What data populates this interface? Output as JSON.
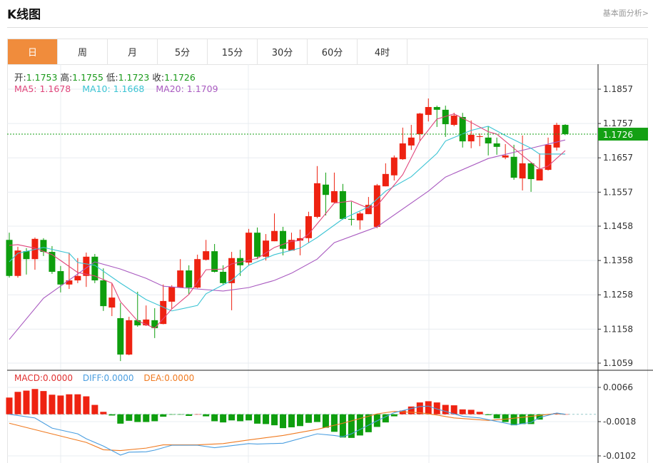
{
  "header": {
    "title": "K线图",
    "link": "基本面分析>"
  },
  "tabs": [
    "日",
    "周",
    "月",
    "5分",
    "15分",
    "30分",
    "60分",
    "4时"
  ],
  "active_tab": 0,
  "ohlc": {
    "open_label": "开:",
    "open": "1.1753",
    "high_label": "高:",
    "high": "1.1755",
    "low_label": "低:",
    "low": "1.1723",
    "close_label": "收:",
    "close": "1.1726"
  },
  "ma_legend": {
    "ma5": "MA5: 1.1678",
    "ma10": "MA10: 1.1668",
    "ma20": "MA20: 1.1709"
  },
  "macd_legend": {
    "macd": "MACD:0.0000",
    "diff": "DIFF:0.0000",
    "dea": "DEA:0.0000"
  },
  "colors": {
    "up": "#ee2211",
    "down": "#0e9e0e",
    "ma5": "#e0457b",
    "ma10": "#3cc4d4",
    "ma20": "#a95ac0",
    "diff": "#4a9ee0",
    "dea": "#f07a20",
    "current": "#14a014",
    "tab_active": "#f08c3c"
  },
  "chart_data": [
    {
      "type": "candlestick",
      "ylim": [
        1.1059,
        1.1857
      ],
      "y_ticks": [
        "1.1857",
        "1.1757",
        "1.1657",
        "1.1557",
        "1.1458",
        "1.1358",
        "1.1258",
        "1.1158",
        "1.1059"
      ],
      "current_price": "1.1726",
      "candles": [
        [
          1.1418,
          1.1439,
          1.1308,
          1.1313
        ],
        [
          1.1313,
          1.1398,
          1.1308,
          1.1387
        ],
        [
          1.1385,
          1.1394,
          1.1317,
          1.1362
        ],
        [
          1.1362,
          1.1425,
          1.1331,
          1.1421
        ],
        [
          1.1418,
          1.1423,
          1.1371,
          1.1383
        ],
        [
          1.1383,
          1.14,
          1.1319,
          1.1325
        ],
        [
          1.1327,
          1.1342,
          1.1265,
          1.1288
        ],
        [
          1.1288,
          1.1381,
          1.1275,
          1.13
        ],
        [
          1.13,
          1.1365,
          1.1292,
          1.1313
        ],
        [
          1.1313,
          1.1381,
          1.1281,
          1.1369
        ],
        [
          1.1369,
          1.1377,
          1.1292,
          1.13
        ],
        [
          1.13,
          1.1335,
          1.1211,
          1.1225
        ],
        [
          1.1221,
          1.1292,
          1.1196,
          1.125
        ],
        [
          1.119,
          1.1234,
          1.1065,
          1.1084
        ],
        [
          1.1084,
          1.1194,
          1.1082,
          1.1184
        ],
        [
          1.1184,
          1.1267,
          1.1165,
          1.1169
        ],
        [
          1.1169,
          1.1227,
          1.1167,
          1.1186
        ],
        [
          1.1184,
          1.1219,
          1.1132,
          1.1161
        ],
        [
          1.1173,
          1.1288,
          1.1172,
          1.124
        ],
        [
          1.1238,
          1.1286,
          1.1217,
          1.1281
        ],
        [
          1.1279,
          1.1362,
          1.1278,
          1.1329
        ],
        [
          1.1329,
          1.1344,
          1.1259,
          1.1279
        ],
        [
          1.1279,
          1.1375,
          1.1277,
          1.1362
        ],
        [
          1.136,
          1.1418,
          1.1358,
          1.1385
        ],
        [
          1.1385,
          1.1406,
          1.1323,
          1.1325
        ],
        [
          1.1325,
          1.1344,
          1.1286,
          1.1292
        ],
        [
          1.1292,
          1.1383,
          1.1213,
          1.1365
        ],
        [
          1.1365,
          1.1389,
          1.1313,
          1.1344
        ],
        [
          1.1352,
          1.145,
          1.1344,
          1.1439
        ],
        [
          1.1439,
          1.1454,
          1.1362,
          1.1369
        ],
        [
          1.1369,
          1.1435,
          1.1358,
          1.1416
        ],
        [
          1.1414,
          1.1495,
          1.1414,
          1.1444
        ],
        [
          1.1444,
          1.1456,
          1.1373,
          1.1392
        ],
        [
          1.1387,
          1.1439,
          1.1387,
          1.1418
        ],
        [
          1.1416,
          1.1448,
          1.1373,
          1.1423
        ],
        [
          1.1423,
          1.15,
          1.141,
          1.1487
        ],
        [
          1.1485,
          1.1633,
          1.1481,
          1.1583
        ],
        [
          1.1579,
          1.1614,
          1.1489,
          1.1549
        ],
        [
          1.1527,
          1.1614,
          1.1525,
          1.156
        ],
        [
          1.156,
          1.1581,
          1.1477,
          1.1479
        ],
        [
          1.1479,
          1.1529,
          1.146,
          1.1477
        ],
        [
          1.1475,
          1.15,
          1.1448,
          1.1495
        ],
        [
          1.1493,
          1.1543,
          1.1493,
          1.152
        ],
        [
          1.1456,
          1.1581,
          1.1452,
          1.1577
        ],
        [
          1.1574,
          1.1641,
          1.1574,
          1.161
        ],
        [
          1.1606,
          1.1664,
          1.1591,
          1.1658
        ],
        [
          1.1653,
          1.1745,
          1.1651,
          1.1699
        ],
        [
          1.1693,
          1.1753,
          1.168,
          1.1716
        ],
        [
          1.1726,
          1.1788,
          1.1707,
          1.1786
        ],
        [
          1.1782,
          1.183,
          1.1763,
          1.1805
        ],
        [
          1.1805,
          1.1809,
          1.1747,
          1.1797
        ],
        [
          1.1797,
          1.1809,
          1.1718,
          1.1755
        ],
        [
          1.1753,
          1.1788,
          1.1749,
          1.178
        ],
        [
          1.1776,
          1.1788,
          1.1687,
          1.1705
        ],
        [
          1.1705,
          1.1766,
          1.1685,
          1.1724
        ],
        [
          1.1718,
          1.1728,
          1.1691,
          1.172
        ],
        [
          1.1716,
          1.1749,
          1.1664,
          1.1699
        ],
        [
          1.1699,
          1.1716,
          1.1666,
          1.1689
        ],
        [
          1.1658,
          1.1697,
          1.1653,
          1.1664
        ],
        [
          1.166,
          1.1695,
          1.1593,
          1.1599
        ],
        [
          1.1597,
          1.1722,
          1.1562,
          1.1641
        ],
        [
          1.1641,
          1.1643,
          1.1558,
          1.1595
        ],
        [
          1.1591,
          1.167,
          1.1591,
          1.1624
        ],
        [
          1.1622,
          1.1716,
          1.162,
          1.1695
        ],
        [
          1.1687,
          1.1759,
          1.1678,
          1.1753
        ],
        [
          1.1753,
          1.1755,
          1.1723,
          1.1726
        ]
      ],
      "ma5": [
        [
          0,
          1.1402
        ],
        [
          1,
          1.1404
        ],
        [
          3,
          1.1394
        ],
        [
          5,
          1.1375
        ],
        [
          6,
          1.1358
        ],
        [
          8,
          1.1323
        ],
        [
          10,
          1.1313
        ],
        [
          12,
          1.1292
        ],
        [
          13,
          1.1238
        ],
        [
          15,
          1.1182
        ],
        [
          17,
          1.1161
        ],
        [
          18,
          1.1188
        ],
        [
          19,
          1.1217
        ],
        [
          21,
          1.1259
        ],
        [
          23,
          1.1331
        ],
        [
          25,
          1.1333
        ],
        [
          26,
          1.1348
        ],
        [
          29,
          1.1364
        ],
        [
          31,
          1.1396
        ],
        [
          33,
          1.1414
        ],
        [
          34,
          1.1416
        ],
        [
          35,
          1.1435
        ],
        [
          38,
          1.1525
        ],
        [
          40,
          1.1531
        ],
        [
          42,
          1.151
        ],
        [
          43,
          1.1518
        ],
        [
          46,
          1.1608
        ],
        [
          48,
          1.1706
        ],
        [
          50,
          1.177
        ],
        [
          52,
          1.1785
        ],
        [
          54,
          1.176
        ],
        [
          56,
          1.1733
        ],
        [
          57,
          1.1726
        ],
        [
          60,
          1.1664
        ],
        [
          62,
          1.1624
        ],
        [
          63,
          1.1633
        ],
        [
          65,
          1.1678
        ]
      ],
      "ma10": [
        [
          0,
          1.1354
        ],
        [
          1,
          1.1379
        ],
        [
          4,
          1.1396
        ],
        [
          7,
          1.1379
        ],
        [
          8,
          1.1352
        ],
        [
          10,
          1.1344
        ],
        [
          13,
          1.1292
        ],
        [
          16,
          1.1244
        ],
        [
          19,
          1.1211
        ],
        [
          22,
          1.1227
        ],
        [
          23,
          1.1261
        ],
        [
          26,
          1.13
        ],
        [
          28,
          1.1344
        ],
        [
          31,
          1.1375
        ],
        [
          34,
          1.1394
        ],
        [
          36,
          1.1425
        ],
        [
          39,
          1.1479
        ],
        [
          42,
          1.1514
        ],
        [
          44,
          1.156
        ],
        [
          47,
          1.1602
        ],
        [
          50,
          1.167
        ],
        [
          51,
          1.1706
        ],
        [
          54,
          1.1737
        ],
        [
          56,
          1.1749
        ],
        [
          58,
          1.1722
        ],
        [
          61,
          1.1685
        ],
        [
          62,
          1.1668
        ],
        [
          65,
          1.1668
        ]
      ],
      "ma20": [
        [
          0,
          1.1128
        ],
        [
          4,
          1.1248
        ],
        [
          10,
          1.1354
        ],
        [
          13,
          1.1333
        ],
        [
          16,
          1.1306
        ],
        [
          18,
          1.1283
        ],
        [
          25,
          1.1269
        ],
        [
          28,
          1.1279
        ],
        [
          31,
          1.13
        ],
        [
          33,
          1.1321
        ],
        [
          36,
          1.1362
        ],
        [
          38,
          1.141
        ],
        [
          43,
          1.1456
        ],
        [
          49,
          1.156
        ],
        [
          51,
          1.1601
        ],
        [
          56,
          1.1655
        ],
        [
          61,
          1.1685
        ],
        [
          65,
          1.1709
        ]
      ]
    },
    {
      "type": "bar+line",
      "y_ticks": [
        "0.0066",
        "-0.0018",
        "-0.0102"
      ],
      "macd": [
        0.0041,
        0.0055,
        0.0058,
        0.0062,
        0.0057,
        0.0048,
        0.0046,
        0.0049,
        0.0049,
        0.0044,
        0.0023,
        0.0006,
        -0.0003,
        -0.0023,
        -0.0016,
        -0.0019,
        -0.0019,
        -0.0017,
        -0.0006,
        -0.0001,
        -0.0001,
        -0.0004,
        0.0,
        -0.0005,
        -0.0017,
        -0.002,
        -0.0015,
        -0.0017,
        -0.0015,
        -0.0023,
        -0.0024,
        -0.0027,
        -0.0034,
        -0.0032,
        -0.0029,
        -0.0021,
        -0.0019,
        -0.0033,
        -0.0043,
        -0.0057,
        -0.0058,
        -0.0052,
        -0.0044,
        -0.0031,
        -0.002,
        -0.0005,
        0.0009,
        0.0019,
        0.0029,
        0.0032,
        0.0029,
        0.0023,
        0.0022,
        0.0012,
        0.0011,
        0.0006,
        -0.0002,
        -0.001,
        -0.0019,
        -0.0027,
        -0.0024,
        -0.0024,
        -0.0013,
        -0.0001,
        0.0003,
        0.0
      ],
      "diff": [
        [
          0,
          0.0
        ],
        [
          3,
          -0.0009
        ],
        [
          5,
          -0.0034
        ],
        [
          8,
          -0.0048
        ],
        [
          9,
          -0.006
        ],
        [
          11,
          -0.0078
        ],
        [
          13,
          -0.01
        ],
        [
          14,
          -0.0093
        ],
        [
          16,
          -0.0092
        ],
        [
          17,
          -0.0088
        ],
        [
          19,
          -0.0076
        ],
        [
          22,
          -0.0076
        ],
        [
          24,
          -0.0082
        ],
        [
          28,
          -0.0072
        ],
        [
          29,
          -0.0073
        ],
        [
          32,
          -0.0071
        ],
        [
          36,
          -0.0048
        ],
        [
          38,
          -0.0052
        ],
        [
          39,
          -0.0055
        ],
        [
          40,
          -0.0048
        ],
        [
          43,
          -0.0016
        ],
        [
          45,
          0.0004
        ],
        [
          48,
          0.0019
        ],
        [
          49,
          0.002
        ],
        [
          50,
          0.0013
        ],
        [
          53,
          -0.0005
        ],
        [
          55,
          -0.0009
        ],
        [
          59,
          -0.0026
        ],
        [
          61,
          -0.002
        ],
        [
          62,
          -0.0008
        ],
        [
          64,
          0.0003
        ],
        [
          65,
          0.0
        ]
      ],
      "dea": [
        [
          0,
          -0.0022
        ],
        [
          4,
          -0.0043
        ],
        [
          9,
          -0.0069
        ],
        [
          11,
          -0.0087
        ],
        [
          13,
          -0.0089
        ],
        [
          16,
          -0.0083
        ],
        [
          18,
          -0.0075
        ],
        [
          22,
          -0.0075
        ],
        [
          25,
          -0.0072
        ],
        [
          28,
          -0.0063
        ],
        [
          32,
          -0.0052
        ],
        [
          36,
          -0.0037
        ],
        [
          39,
          -0.0022
        ],
        [
          43,
          0.0001
        ],
        [
          45,
          0.0007
        ],
        [
          48,
          0.0004
        ],
        [
          50,
          -0.0002
        ],
        [
          52,
          -0.0009
        ],
        [
          56,
          -0.0015
        ],
        [
          58,
          -0.0012
        ],
        [
          61,
          -0.0005
        ],
        [
          64,
          0.0002
        ],
        [
          65,
          0.0
        ]
      ]
    }
  ]
}
